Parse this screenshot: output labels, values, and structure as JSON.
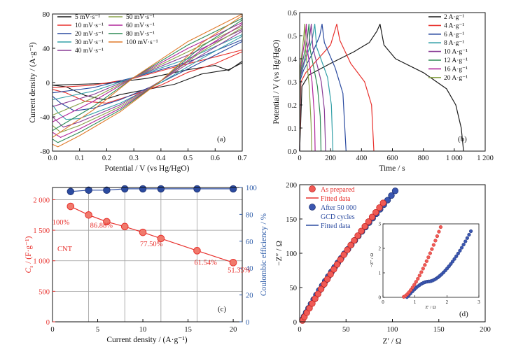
{
  "colors": {
    "black": "#1a1a1a",
    "red": "#e8312d",
    "blue": "#2b4ba0",
    "teal": "#33a0a8",
    "purple": "#8a3d96",
    "olive": "#8aa34a",
    "magenta": "#b0259a",
    "green": "#2e8b57",
    "orange": "#e07a2a",
    "grey": "#9a9a9a"
  },
  "chart_data": [
    {
      "panel": "a",
      "type": "line",
      "panel_label": "(a)",
      "xlabel": "Potential / V (vs Hg/HgO)",
      "ylabel": "Current density / (A·g⁻¹)",
      "xlim": [
        0.0,
        0.7
      ],
      "ylim": [
        -80,
        80
      ],
      "xticks": [
        "0.0",
        "0.1",
        "0.2",
        "0.3",
        "0.4",
        "0.5",
        "0.6",
        "0.7"
      ],
      "yticks": [
        "-80",
        "-40",
        "0",
        "40",
        "80"
      ],
      "legend_col1": [
        "5 mV·s⁻¹",
        "10 mV·s⁻¹",
        "20 mV·s⁻¹",
        "30 mV·s⁻¹",
        "40 mV·s⁻¹"
      ],
      "legend_col2": [
        "50 mV·s⁻¹",
        "60 mV·s⁻¹",
        "80 mV·s⁻¹",
        "100 mV·s⁻¹"
      ],
      "series": [
        {
          "scan": 5,
          "color": "#1a1a1a",
          "upper": [
            [
              0,
              -3
            ],
            [
              0.2,
              -1
            ],
            [
              0.35,
              5
            ],
            [
              0.5,
              15
            ],
            [
              0.6,
              20
            ],
            [
              0.65,
              14
            ],
            [
              0.7,
              25
            ]
          ],
          "lower": [
            [
              0.7,
              23
            ],
            [
              0.65,
              15
            ],
            [
              0.55,
              10
            ],
            [
              0.45,
              -2
            ],
            [
              0.35,
              -8
            ],
            [
              0.25,
              -14
            ],
            [
              0.19,
              -20
            ],
            [
              0.12,
              -15
            ],
            [
              0.05,
              -5
            ],
            [
              0,
              -3
            ]
          ]
        },
        {
          "scan": 10,
          "color": "#e8312d",
          "upper": [
            [
              0,
              -6
            ],
            [
              0.15,
              -3
            ],
            [
              0.3,
              5
            ],
            [
              0.45,
              18
            ],
            [
              0.6,
              30
            ],
            [
              0.7,
              38
            ]
          ],
          "lower": [
            [
              0.7,
              36
            ],
            [
              0.6,
              22
            ],
            [
              0.5,
              12
            ],
            [
              0.4,
              -3
            ],
            [
              0.3,
              -14
            ],
            [
              0.2,
              -24
            ],
            [
              0.12,
              -22
            ],
            [
              0.05,
              -12
            ],
            [
              0,
              -8
            ]
          ]
        },
        {
          "scan": 20,
          "color": "#2b4ba0",
          "upper": [
            [
              0,
              -12
            ],
            [
              0.15,
              -6
            ],
            [
              0.3,
              6
            ],
            [
              0.5,
              24
            ],
            [
              0.7,
              50
            ]
          ],
          "lower": [
            [
              0.7,
              48
            ],
            [
              0.55,
              24
            ],
            [
              0.4,
              0
            ],
            [
              0.25,
              -20
            ],
            [
              0.15,
              -30
            ],
            [
              0.08,
              -33
            ],
            [
              0.03,
              -24
            ],
            [
              0,
              -16
            ]
          ]
        },
        {
          "scan": 30,
          "color": "#33a0a8",
          "upper": [
            [
              0,
              -20
            ],
            [
              0.15,
              -10
            ],
            [
              0.3,
              6
            ],
            [
              0.5,
              28
            ],
            [
              0.7,
              56
            ]
          ],
          "lower": [
            [
              0.7,
              54
            ],
            [
              0.55,
              28
            ],
            [
              0.4,
              0
            ],
            [
              0.25,
              -24
            ],
            [
              0.1,
              -42
            ],
            [
              0.05,
              -43
            ],
            [
              0.02,
              -35
            ],
            [
              0,
              -26
            ]
          ]
        },
        {
          "scan": 40,
          "color": "#8a3d96",
          "upper": [
            [
              0,
              -28
            ],
            [
              0.15,
              -14
            ],
            [
              0.3,
              6
            ],
            [
              0.5,
              32
            ],
            [
              0.7,
              62
            ]
          ],
          "lower": [
            [
              0.7,
              60
            ],
            [
              0.55,
              32
            ],
            [
              0.4,
              2
            ],
            [
              0.25,
              -26
            ],
            [
              0.1,
              -46
            ],
            [
              0.04,
              -52
            ],
            [
              0,
              -40
            ]
          ]
        },
        {
          "scan": 50,
          "color": "#8aa34a",
          "upper": [
            [
              0,
              -38
            ],
            [
              0.15,
              -18
            ],
            [
              0.3,
              6
            ],
            [
              0.5,
              36
            ],
            [
              0.7,
              66
            ]
          ],
          "lower": [
            [
              0.7,
              64
            ],
            [
              0.55,
              36
            ],
            [
              0.4,
              2
            ],
            [
              0.25,
              -28
            ],
            [
              0.1,
              -50
            ],
            [
              0.03,
              -58
            ],
            [
              0,
              -50
            ]
          ]
        },
        {
          "scan": 60,
          "color": "#b0259a",
          "upper": [
            [
              0,
              -46
            ],
            [
              0.15,
              -22
            ],
            [
              0.3,
              6
            ],
            [
              0.5,
              40
            ],
            [
              0.7,
              70
            ]
          ],
          "lower": [
            [
              0.7,
              68
            ],
            [
              0.55,
              38
            ],
            [
              0.4,
              2
            ],
            [
              0.25,
              -30
            ],
            [
              0.1,
              -54
            ],
            [
              0.03,
              -64
            ],
            [
              0,
              -58
            ]
          ]
        },
        {
          "scan": 80,
          "color": "#2e8b57",
          "upper": [
            [
              0,
              -56
            ],
            [
              0.15,
              -28
            ],
            [
              0.3,
              6
            ],
            [
              0.5,
              44
            ],
            [
              0.7,
              75
            ]
          ],
          "lower": [
            [
              0.7,
              73
            ],
            [
              0.55,
              42
            ],
            [
              0.4,
              2
            ],
            [
              0.25,
              -32
            ],
            [
              0.1,
              -58
            ],
            [
              0.02,
              -70
            ],
            [
              0,
              -66
            ]
          ]
        },
        {
          "scan": 100,
          "color": "#e07a2a",
          "upper": [
            [
              0,
              -64
            ],
            [
              0.15,
              -32
            ],
            [
              0.3,
              6
            ],
            [
              0.5,
              48
            ],
            [
              0.7,
              80
            ]
          ],
          "lower": [
            [
              0.7,
              78
            ],
            [
              0.55,
              46
            ],
            [
              0.4,
              2
            ],
            [
              0.25,
              -34
            ],
            [
              0.1,
              -62
            ],
            [
              0.02,
              -75
            ],
            [
              0,
              -72
            ]
          ]
        }
      ]
    },
    {
      "panel": "b",
      "type": "line",
      "panel_label": "(b)",
      "xlabel": "Time / s",
      "ylabel": "Potential / V (vs Hg/HgO)",
      "xlim": [
        0,
        1200
      ],
      "ylim": [
        0,
        0.6
      ],
      "xticks": [
        "0",
        "200",
        "400",
        "600",
        "800",
        "1 000",
        "1 200"
      ],
      "yticks": [
        "0.0",
        "0.1",
        "0.2",
        "0.3",
        "0.4",
        "0.5",
        "0.6"
      ],
      "legend": [
        "2 A·g⁻¹",
        "4 A·g⁻¹",
        "6 A·g⁻¹",
        "8 A·g⁻¹",
        "10 A·g⁻¹",
        "12 A·g⁻¹",
        "16 A·g⁻¹",
        "20 A·g⁻¹"
      ],
      "series": [
        {
          "current": 2,
          "color": "#1a1a1a",
          "points": [
            [
              0,
              0
            ],
            [
              15,
              0.28
            ],
            [
              60,
              0.33
            ],
            [
              200,
              0.38
            ],
            [
              350,
              0.43
            ],
            [
              450,
              0.47
            ],
            [
              500,
              0.52
            ],
            [
              520,
              0.55
            ],
            [
              545,
              0.46
            ],
            [
              620,
              0.4
            ],
            [
              800,
              0.34
            ],
            [
              950,
              0.27
            ],
            [
              1010,
              0.2
            ],
            [
              1045,
              0.1
            ],
            [
              1060,
              0
            ]
          ]
        },
        {
          "current": 4,
          "color": "#e8312d",
          "points": [
            [
              0,
              0
            ],
            [
              8,
              0.3
            ],
            [
              40,
              0.34
            ],
            [
              120,
              0.4
            ],
            [
              200,
              0.46
            ],
            [
              240,
              0.55
            ],
            [
              260,
              0.48
            ],
            [
              330,
              0.38
            ],
            [
              420,
              0.3
            ],
            [
              465,
              0.2
            ],
            [
              480,
              0
            ]
          ]
        },
        {
          "current": 6,
          "color": "#2b4ba0",
          "points": [
            [
              0,
              0
            ],
            [
              5,
              0.31
            ],
            [
              25,
              0.35
            ],
            [
              80,
              0.42
            ],
            [
              130,
              0.5
            ],
            [
              145,
              0.55
            ],
            [
              160,
              0.47
            ],
            [
              230,
              0.36
            ],
            [
              280,
              0.25
            ],
            [
              300,
              0
            ]
          ]
        },
        {
          "current": 8,
          "color": "#33a0a8",
          "points": [
            [
              0,
              0
            ],
            [
              4,
              0.32
            ],
            [
              30,
              0.38
            ],
            [
              80,
              0.48
            ],
            [
              98,
              0.55
            ],
            [
              110,
              0.45
            ],
            [
              180,
              0.32
            ],
            [
              205,
              0.2
            ],
            [
              215,
              0
            ]
          ]
        },
        {
          "current": 10,
          "color": "#8a3d96",
          "points": [
            [
              0,
              0
            ],
            [
              3,
              0.32
            ],
            [
              25,
              0.38
            ],
            [
              60,
              0.47
            ],
            [
              75,
              0.55
            ],
            [
              85,
              0.45
            ],
            [
              140,
              0.3
            ],
            [
              160,
              0.18
            ],
            [
              168,
              0
            ]
          ]
        },
        {
          "current": 12,
          "color": "#2e8b57",
          "points": [
            [
              0,
              0
            ],
            [
              3,
              0.33
            ],
            [
              20,
              0.39
            ],
            [
              48,
              0.48
            ],
            [
              60,
              0.55
            ],
            [
              68,
              0.44
            ],
            [
              115,
              0.28
            ],
            [
              133,
              0.15
            ],
            [
              138,
              0
            ]
          ]
        },
        {
          "current": 16,
          "color": "#b0259a",
          "points": [
            [
              0,
              0
            ],
            [
              2,
              0.34
            ],
            [
              15,
              0.4
            ],
            [
              35,
              0.49
            ],
            [
              43,
              0.55
            ],
            [
              50,
              0.44
            ],
            [
              80,
              0.3
            ],
            [
              96,
              0.15
            ],
            [
              100,
              0
            ]
          ]
        },
        {
          "current": 20,
          "color": "#8aa34a",
          "points": [
            [
              0,
              0
            ],
            [
              2,
              0.35
            ],
            [
              12,
              0.41
            ],
            [
              27,
              0.5
            ],
            [
              32,
              0.55
            ],
            [
              38,
              0.44
            ],
            [
              62,
              0.28
            ],
            [
              74,
              0.12
            ],
            [
              78,
              0
            ]
          ]
        }
      ]
    },
    {
      "panel": "c",
      "type": "scatter",
      "panel_label": "(c)",
      "xlabel": "Current density / (A·g⁻¹)",
      "ylabel_left": "C_s / (F·g⁻¹)",
      "ylabel_left_main": "C",
      "ylabel_left_sub": "s",
      "ylabel_left_rest": " / (F·g⁻¹)",
      "ylabel_right": "Coulombic efficiency / %",
      "xlim": [
        0,
        21
      ],
      "ylim_left": [
        0,
        2200
      ],
      "ylim_right": [
        0,
        100
      ],
      "xticks": [
        "0",
        "5",
        "10",
        "15",
        "20"
      ],
      "yticks_left": [
        "0",
        "500",
        "1 000",
        "1 500",
        "2 000"
      ],
      "yticks_right": [
        "0",
        "20",
        "40",
        "60",
        "80",
        "100"
      ],
      "x": [
        2,
        4,
        6,
        8,
        10,
        12,
        16,
        20
      ],
      "capacitance": [
        1890,
        1750,
        1640,
        1560,
        1465,
        1365,
        1165,
        970
      ],
      "coulombic_efficiency": [
        97,
        98,
        98,
        99,
        99,
        99,
        99,
        99
      ],
      "annotations": [
        "100%",
        "86.88%",
        "77.50%",
        "61.54%",
        "51.35%"
      ],
      "label": "CNT"
    },
    {
      "panel": "d",
      "type": "scatter",
      "panel_label": "(d)",
      "xlabel": "Z′ / Ω",
      "ylabel": "−Z″ / Ω",
      "xlim": [
        0,
        200
      ],
      "ylim": [
        0,
        200
      ],
      "xticks": [
        "0",
        "50",
        "100",
        "150",
        "200"
      ],
      "yticks": [
        "0",
        "50",
        "100",
        "150",
        "200"
      ],
      "legend": [
        "As prepared",
        "Fitted data",
        "After 50 000",
        "GCD cycles",
        "Fitted data"
      ],
      "inset": {
        "xlabel": "Z′ / Ω",
        "ylabel": "−Z″ / Ω",
        "xlim": [
          0,
          3
        ],
        "ylim": [
          0,
          3
        ],
        "xticks": [
          "0",
          "1",
          "2",
          "3"
        ],
        "yticks": [
          "0",
          "1",
          "2",
          "3"
        ]
      }
    }
  ]
}
